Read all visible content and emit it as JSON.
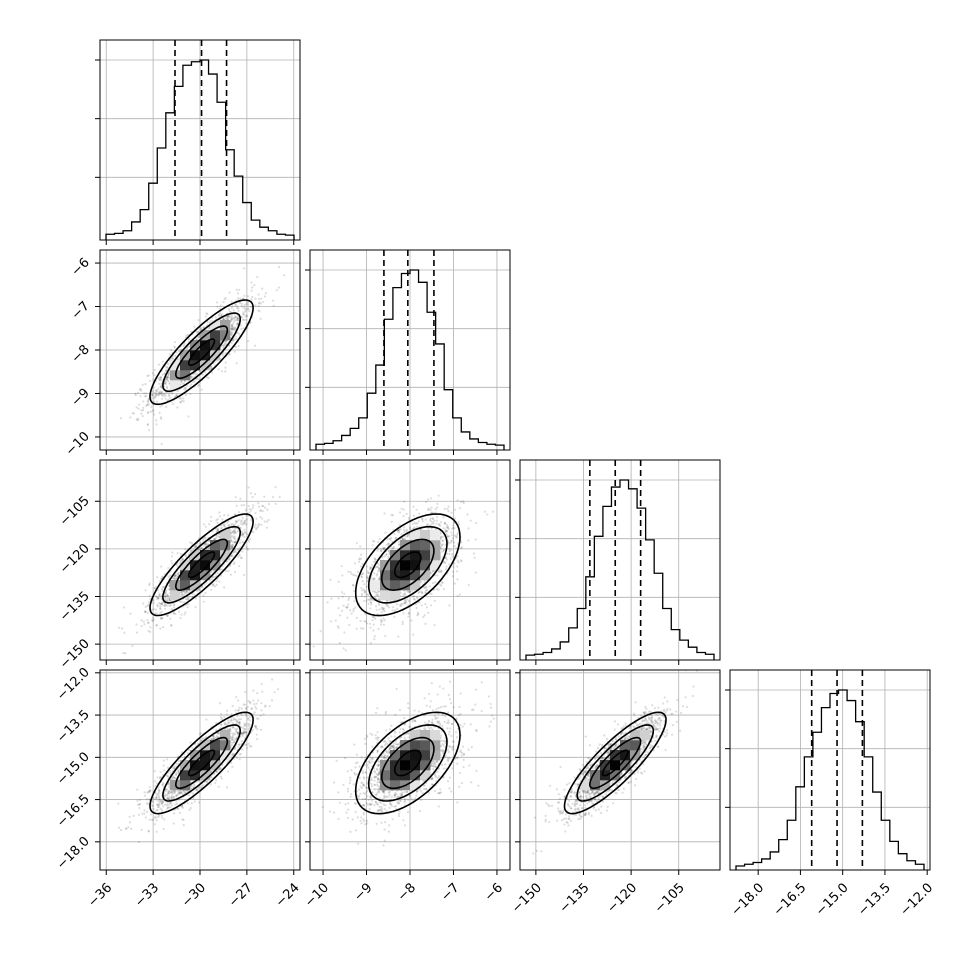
{
  "chart_data": {
    "type": "corner",
    "parameters": [
      {
        "id": "p1",
        "range": [
          -36.4,
          -23.6
        ],
        "ticks": [
          "−36",
          "−33",
          "−30",
          "−27",
          "−24"
        ],
        "tick_values": [
          -36,
          -33,
          -30,
          -27,
          -24
        ],
        "quantiles": [
          -31.6,
          -29.9,
          -28.3
        ],
        "hist": [
          0.01,
          0.015,
          0.03,
          0.08,
          0.15,
          0.3,
          0.5,
          0.7,
          0.85,
          0.97,
          0.99,
          1.0,
          0.92,
          0.76,
          0.49,
          0.34,
          0.19,
          0.09,
          0.05,
          0.03,
          0.01,
          0.005
        ]
      },
      {
        "id": "p2",
        "range": [
          -10.3,
          -5.7
        ],
        "ticks": [
          "−10",
          "−9",
          "−8",
          "−7",
          "−6"
        ],
        "tick_values": [
          -10,
          -9,
          -8,
          -7,
          -6
        ],
        "quantiles": [
          -8.6,
          -8.05,
          -7.45
        ],
        "hist": [
          0.01,
          0.015,
          0.03,
          0.06,
          0.1,
          0.16,
          0.3,
          0.46,
          0.72,
          0.9,
          0.98,
          1.0,
          0.93,
          0.76,
          0.58,
          0.32,
          0.16,
          0.08,
          0.04,
          0.02,
          0.01,
          0.005
        ]
      },
      {
        "id": "p3",
        "range": [
          -155,
          -92
        ],
        "ticks": [
          "−150",
          "−135",
          "−120",
          "−105"
        ],
        "tick_values": [
          -150,
          -135,
          -120,
          -105
        ],
        "quantiles": [
          -133,
          -125,
          -117
        ],
        "hist": [
          0.005,
          0.01,
          0.02,
          0.04,
          0.08,
          0.16,
          0.27,
          0.45,
          0.68,
          0.85,
          0.96,
          1.0,
          0.95,
          0.84,
          0.66,
          0.47,
          0.27,
          0.15,
          0.09,
          0.05,
          0.02,
          0.01
        ]
      },
      {
        "id": "p4",
        "range": [
          -19.0,
          -11.9
        ],
        "ticks": [
          "−18.0",
          "−16.5",
          "−15.0",
          "−13.5",
          "−12.0"
        ],
        "tick_values": [
          -18,
          -16.5,
          -15,
          -13.5,
          -12
        ],
        "quantiles": [
          -16.1,
          -15.2,
          -14.3
        ],
        "hist": [
          0.0,
          0.01,
          0.02,
          0.04,
          0.08,
          0.15,
          0.26,
          0.45,
          0.62,
          0.76,
          0.9,
          0.98,
          1.0,
          0.94,
          0.82,
          0.62,
          0.42,
          0.26,
          0.14,
          0.07,
          0.03,
          0.01
        ]
      }
    ],
    "correlations": [
      [
        1.0,
        0.85,
        0.85,
        0.85
      ],
      [
        0.85,
        1.0,
        0.55,
        0.55
      ],
      [
        0.85,
        0.55,
        1.0,
        0.85
      ],
      [
        0.85,
        0.55,
        0.85,
        1.0
      ]
    ],
    "means": [
      -29.9,
      -8.05,
      -125,
      -15.2
    ],
    "sigmas": [
      1.65,
      0.6,
      8.0,
      0.9
    ],
    "contour_levels_sigma": [
      0.5,
      1.0,
      1.5,
      2.0
    ],
    "grid": true,
    "n_samples_scatter": 1500
  }
}
